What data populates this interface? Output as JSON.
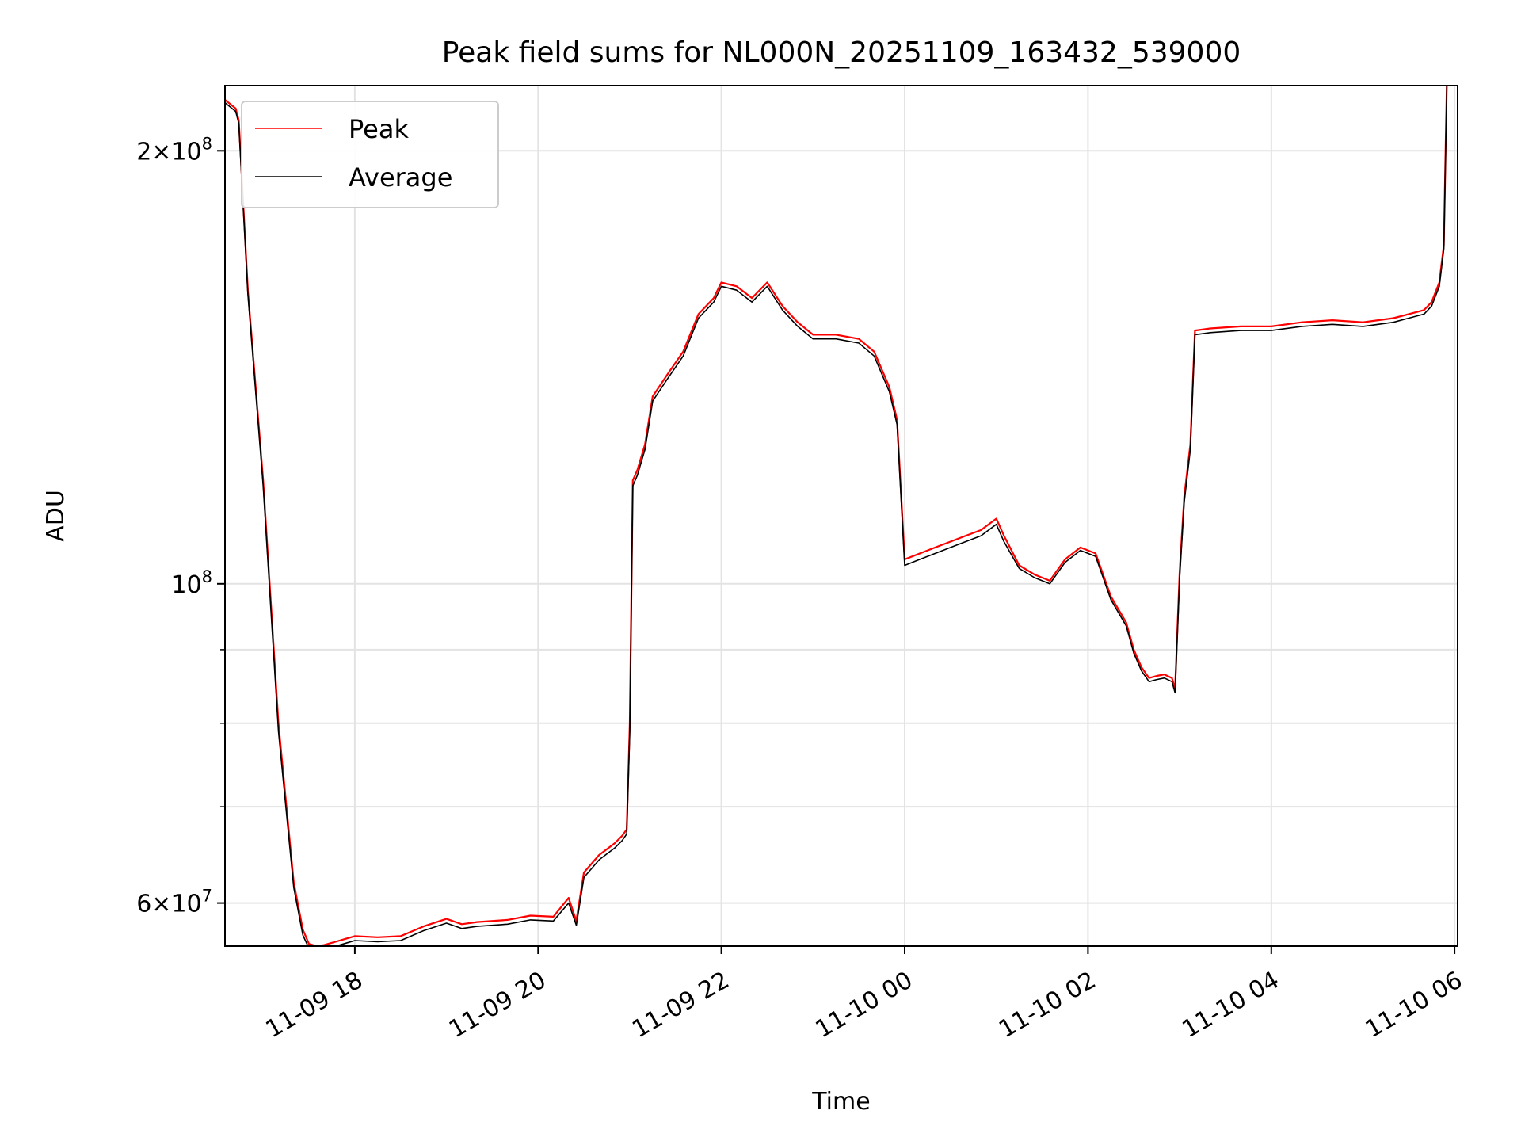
{
  "chart_data": {
    "type": "line",
    "title": "Peak field sums for NL000N_20251109_163432_539000",
    "xlabel": "Time",
    "ylabel": "ADU",
    "yscale": "log",
    "xlim": [
      "2025-11-09 16:35",
      "2025-11-10 06:02"
    ],
    "ylim": [
      56000000,
      222000000
    ],
    "x_ticks": [
      {
        "value": "2025-11-09 18:00",
        "label": "11-09 18"
      },
      {
        "value": "2025-11-09 20:00",
        "label": "11-09 20"
      },
      {
        "value": "2025-11-09 22:00",
        "label": "11-09 22"
      },
      {
        "value": "2025-11-10 00:00",
        "label": "11-10 00"
      },
      {
        "value": "2025-11-10 02:00",
        "label": "11-10 02"
      },
      {
        "value": "2025-11-10 04:00",
        "label": "11-10 04"
      },
      {
        "value": "2025-11-10 06:00",
        "label": "11-10 06"
      }
    ],
    "y_ticks": [
      {
        "value": 60000000,
        "mantissa": "6",
        "times": "×",
        "base": "10",
        "exponent": "7"
      },
      {
        "value": 100000000,
        "mantissa": "",
        "times": "",
        "base": "10",
        "exponent": "8"
      },
      {
        "value": 200000000,
        "mantissa": "2",
        "times": "×",
        "base": "10",
        "exponent": "8"
      }
    ],
    "y_minor_ticks": [
      70000000,
      80000000,
      90000000
    ],
    "grid": true,
    "legend": "upper-left",
    "x": [
      "2025-11-09 16:35",
      "2025-11-09 16:42",
      "2025-11-09 16:44",
      "2025-11-09 16:50",
      "2025-11-09 17:00",
      "2025-11-09 17:10",
      "2025-11-09 17:20",
      "2025-11-09 17:26",
      "2025-11-09 17:30",
      "2025-11-09 17:35",
      "2025-11-09 17:40",
      "2025-11-09 17:50",
      "2025-11-09 17:55",
      "2025-11-09 18:00",
      "2025-11-09 18:15",
      "2025-11-09 18:30",
      "2025-11-09 18:45",
      "2025-11-09 19:00",
      "2025-11-09 19:10",
      "2025-11-09 19:20",
      "2025-11-09 19:40",
      "2025-11-09 19:55",
      "2025-11-09 20:10",
      "2025-11-09 20:20",
      "2025-11-09 20:25",
      "2025-11-09 20:30",
      "2025-11-09 20:40",
      "2025-11-09 20:50",
      "2025-11-09 20:55",
      "2025-11-09 20:58",
      "2025-11-09 21:00",
      "2025-11-09 21:02",
      "2025-11-09 21:05",
      "2025-11-09 21:10",
      "2025-11-09 21:15",
      "2025-11-09 21:25",
      "2025-11-09 21:35",
      "2025-11-09 21:45",
      "2025-11-09 21:55",
      "2025-11-09 22:00",
      "2025-11-09 22:10",
      "2025-11-09 22:20",
      "2025-11-09 22:30",
      "2025-11-09 22:40",
      "2025-11-09 22:50",
      "2025-11-09 23:00",
      "2025-11-09 23:15",
      "2025-11-09 23:30",
      "2025-11-09 23:40",
      "2025-11-09 23:50",
      "2025-11-09 23:55",
      "2025-11-10 00:00",
      "2025-11-10 00:10",
      "2025-11-10 00:20",
      "2025-11-10 00:30",
      "2025-11-10 00:40",
      "2025-11-10 00:50",
      "2025-11-10 01:00",
      "2025-11-10 01:05",
      "2025-11-10 01:15",
      "2025-11-10 01:25",
      "2025-11-10 01:35",
      "2025-11-10 01:45",
      "2025-11-10 01:55",
      "2025-11-10 02:05",
      "2025-11-10 02:15",
      "2025-11-10 02:25",
      "2025-11-10 02:30",
      "2025-11-10 02:35",
      "2025-11-10 02:40",
      "2025-11-10 02:45",
      "2025-11-10 02:50",
      "2025-11-10 02:55",
      "2025-11-10 02:57",
      "2025-11-10 03:00",
      "2025-11-10 03:03",
      "2025-11-10 03:07",
      "2025-11-10 03:10",
      "2025-11-10 03:20",
      "2025-11-10 03:40",
      "2025-11-10 04:00",
      "2025-11-10 04:20",
      "2025-11-10 04:40",
      "2025-11-10 05:00",
      "2025-11-10 05:10",
      "2025-11-10 05:20",
      "2025-11-10 05:30",
      "2025-11-10 05:40",
      "2025-11-10 05:45",
      "2025-11-10 05:50",
      "2025-11-10 05:53",
      "2025-11-10 05:55"
    ],
    "series": [
      {
        "name": "Peak",
        "color": "#ff0000",
        "values": [
          217000000,
          214000000,
          210000000,
          160000000,
          118000000,
          80000000,
          62000000,
          57500000,
          56200000,
          56000000,
          56100000,
          56500000,
          56700000,
          56900000,
          56800000,
          56900000,
          57800000,
          58500000,
          58000000,
          58200000,
          58400000,
          58800000,
          58700000,
          60500000,
          58300000,
          63000000,
          64800000,
          66000000,
          66800000,
          67500000,
          80000000,
          118000000,
          120000000,
          125000000,
          135000000,
          140000000,
          145000000,
          154000000,
          158000000,
          162000000,
          161000000,
          158000000,
          162000000,
          156000000,
          152000000,
          149000000,
          149000000,
          148000000,
          145000000,
          137000000,
          130000000,
          104000000,
          105000000,
          106000000,
          107000000,
          108000000,
          109000000,
          111000000,
          108000000,
          103000000,
          101500000,
          100500000,
          104000000,
          106000000,
          105000000,
          98000000,
          94000000,
          90000000,
          87500000,
          86000000,
          86300000,
          86500000,
          86000000,
          84500000,
          102000000,
          115000000,
          125000000,
          150000000,
          150500000,
          151000000,
          151000000,
          152000000,
          152500000,
          152000000,
          152500000,
          153000000,
          154000000,
          155000000,
          157000000,
          162000000,
          172000000,
          225000000
        ]
      },
      {
        "name": "Average",
        "color": "#000000",
        "values": [
          216000000,
          213000000,
          209000000,
          159000000,
          117000000,
          79000000,
          61500000,
          57000000,
          55800000,
          55600000,
          55700000,
          56100000,
          56300000,
          56500000,
          56400000,
          56500000,
          57400000,
          58100000,
          57600000,
          57800000,
          58000000,
          58400000,
          58300000,
          60000000,
          57900000,
          62500000,
          64300000,
          65500000,
          66300000,
          67000000,
          79000000,
          117000000,
          119000000,
          124000000,
          134000000,
          139000000,
          144000000,
          153000000,
          157000000,
          161000000,
          160000000,
          157000000,
          161000000,
          155000000,
          151000000,
          148000000,
          148000000,
          147000000,
          144000000,
          136000000,
          129000000,
          103000000,
          104000000,
          105000000,
          106000000,
          107000000,
          108000000,
          110000000,
          107000000,
          102500000,
          101000000,
          100000000,
          103500000,
          105500000,
          104500000,
          97500000,
          93500000,
          89500000,
          87000000,
          85500000,
          85800000,
          86000000,
          85500000,
          84000000,
          101000000,
          114000000,
          124000000,
          149000000,
          149500000,
          150000000,
          150000000,
          151000000,
          151500000,
          151000000,
          151500000,
          152000000,
          153000000,
          154000000,
          156000000,
          161000000,
          171000000,
          224000000
        ]
      }
    ]
  }
}
